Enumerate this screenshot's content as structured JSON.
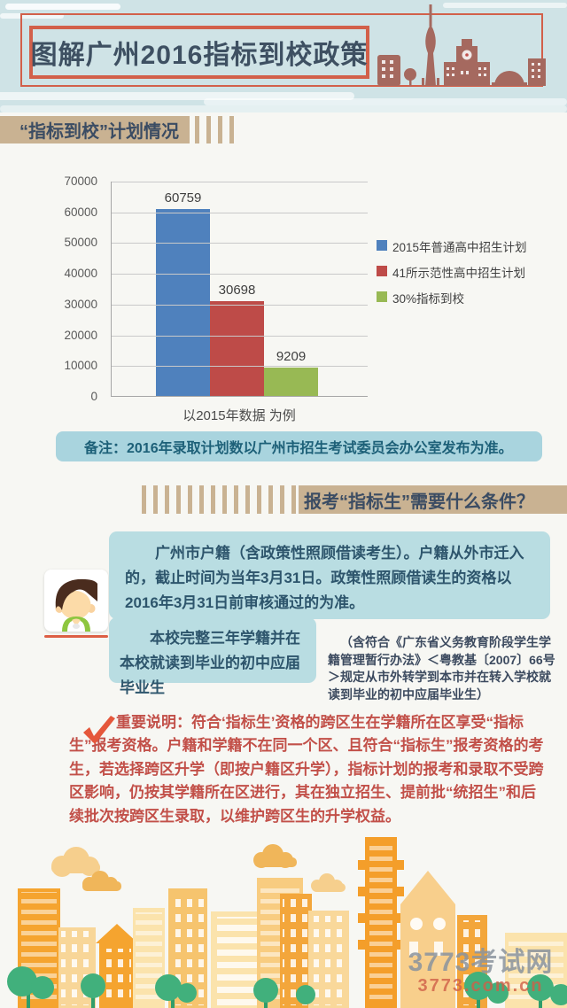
{
  "header": {
    "title": "图解广州2016指标到校政策"
  },
  "sections": {
    "plan_title": "“指标到校”计划情况",
    "conditions_title": "报考“指标生”需要什么条件？"
  },
  "chart_data": {
    "type": "bar",
    "categories": [
      "2015年普通高中招生计划",
      "41所示范性高中招生计划",
      "30%指标到校"
    ],
    "values": [
      60759,
      30698,
      9209
    ],
    "value_labels": [
      "60759",
      "30698",
      "9209"
    ],
    "bar_colors": [
      "#4f81bd",
      "#be4b48",
      "#98b954"
    ],
    "legend": [
      "2015年普通高中招生计划",
      "41所示范性高中招生计划",
      "30%指标到校"
    ],
    "legend_position": "right",
    "title": "",
    "xlabel": "以2015年数据 为例",
    "ylabel": "",
    "ylim": [
      0,
      70000
    ],
    "ytick_step": 10000,
    "grid": true
  },
  "note": {
    "text": "备注：2016年录取计划数以广州市招生考试委员会办公室发布为准。"
  },
  "conditions": {
    "box1": "广州市户籍（含政策性照顾借读考生）。户籍从外市迁入的，截止时间为当年3月31日。政策性照顾借读生的资格以2016年3月31日前审核通过的为准。",
    "box2": "本校完整三年学籍并在本校就读到毕业的初中应届毕业生",
    "sidenote": "（含符合《广东省义务教育阶段学生学籍管理暂行办法》＜粤教基〔2007〕66号＞规定从市外转学到本市并在转入学校就读到毕业的初中应届毕业生）"
  },
  "important": {
    "text": "重要说明：符合‘指标生’资格的跨区生在学籍所在区享受“指标生”报考资格。户籍和学籍不在同一个区、且符合“指标生”报考资格的考生，若选择跨区升学（即按户籍区升学），指标计划的报考和录取不受跨区影响，仍按其学籍所在区进行，其在独立招生、提前批“统招生”和后续批次按跨区生录取，以维护跨区生的升学权益。"
  },
  "watermark": {
    "site_name": "3773考试网",
    "site_url": "3773.com.cn"
  },
  "colors": {
    "header_bg": "#cfe3e6",
    "accent_red_border": "#d2604a",
    "skyline": "#a5695f",
    "title_text": "#3e5062",
    "section_tan": "#c9b292",
    "note_bg": "#a9d4de",
    "cond_box_bg": "#b9dde2",
    "important_red": "#c25049",
    "bar_blue": "#4f81bd",
    "bar_red": "#be4b48",
    "bar_green": "#98b954",
    "footer_orange": "#f5a42f",
    "footer_light": "#fbe3ac",
    "tree_green": "#41b07c"
  }
}
